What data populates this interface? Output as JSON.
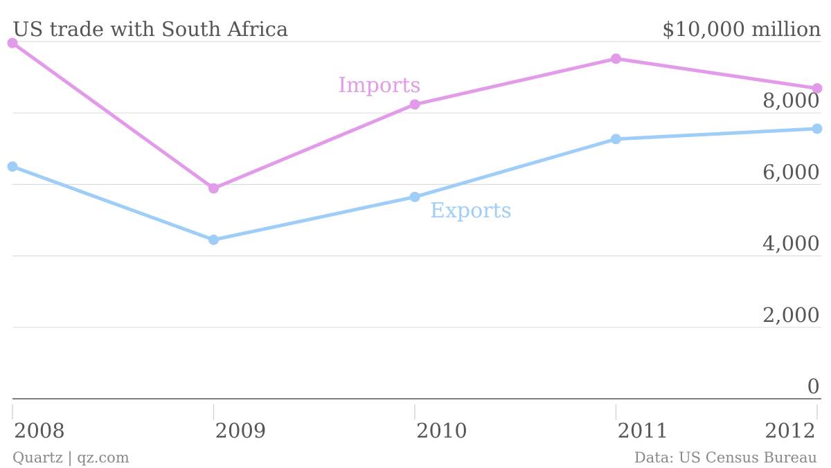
{
  "chart_data": {
    "type": "line",
    "title": "US trade with South Africa",
    "unit_label": "$10,000 million",
    "categories": [
      "2008",
      "2009",
      "2010",
      "2011",
      "2012"
    ],
    "y_ticks": [
      {
        "value": 0,
        "label": "0"
      },
      {
        "value": 2000,
        "label": "2,000"
      },
      {
        "value": 4000,
        "label": "4,000"
      },
      {
        "value": 6000,
        "label": "6,000"
      },
      {
        "value": 8000,
        "label": "8,000"
      }
    ],
    "ylim": [
      0,
      10000
    ],
    "grid": true,
    "series": [
      {
        "name": "Imports",
        "color": "#e29be8",
        "values": [
          9960,
          5890,
          8240,
          9520,
          8690
        ]
      },
      {
        "name": "Exports",
        "color": "#9ecdf8",
        "values": [
          6500,
          4450,
          5650,
          7270,
          7560
        ]
      }
    ]
  },
  "footer": {
    "left": "Quartz | qz.com",
    "right": "Data: US Census Bureau"
  }
}
